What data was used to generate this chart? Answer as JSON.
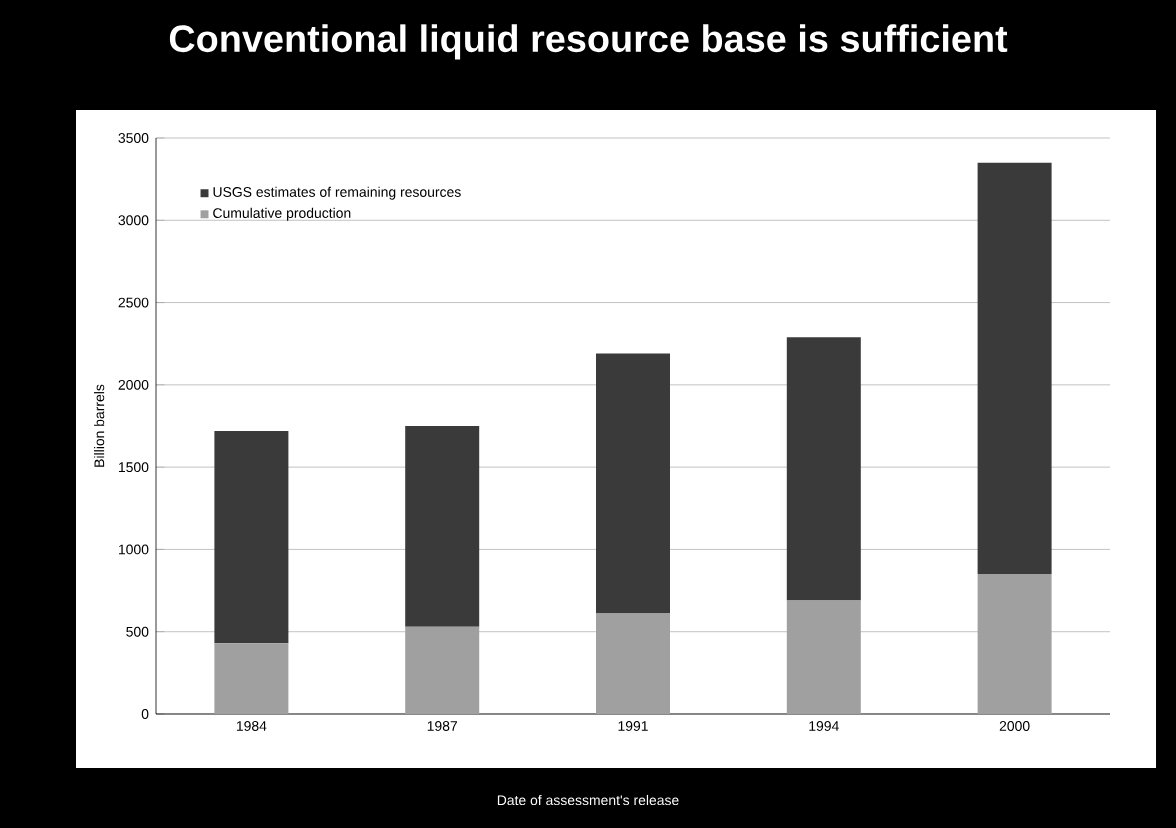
{
  "chart_data": {
    "type": "bar",
    "title": "Conventional liquid resource base is sufficient",
    "xlabel": "Date of assessment's release",
    "ylabel": "Billion barrels",
    "categories": [
      "1984",
      "1987",
      "1991",
      "1994",
      "2000"
    ],
    "stacked": true,
    "series": [
      {
        "name": "Cumulative production",
        "color": "#a0a0a0",
        "values": [
          430,
          530,
          610,
          690,
          850
        ]
      },
      {
        "name": "USGS estimates of remaining resources",
        "color": "#3a3a3a",
        "values": [
          1290,
          1220,
          1580,
          1600,
          2500
        ]
      }
    ],
    "ylim": [
      0,
      3500
    ],
    "yticks": [
      0,
      500,
      1000,
      1500,
      2000,
      2500,
      3000,
      3500
    ],
    "grid": "y",
    "legend": "top left"
  }
}
